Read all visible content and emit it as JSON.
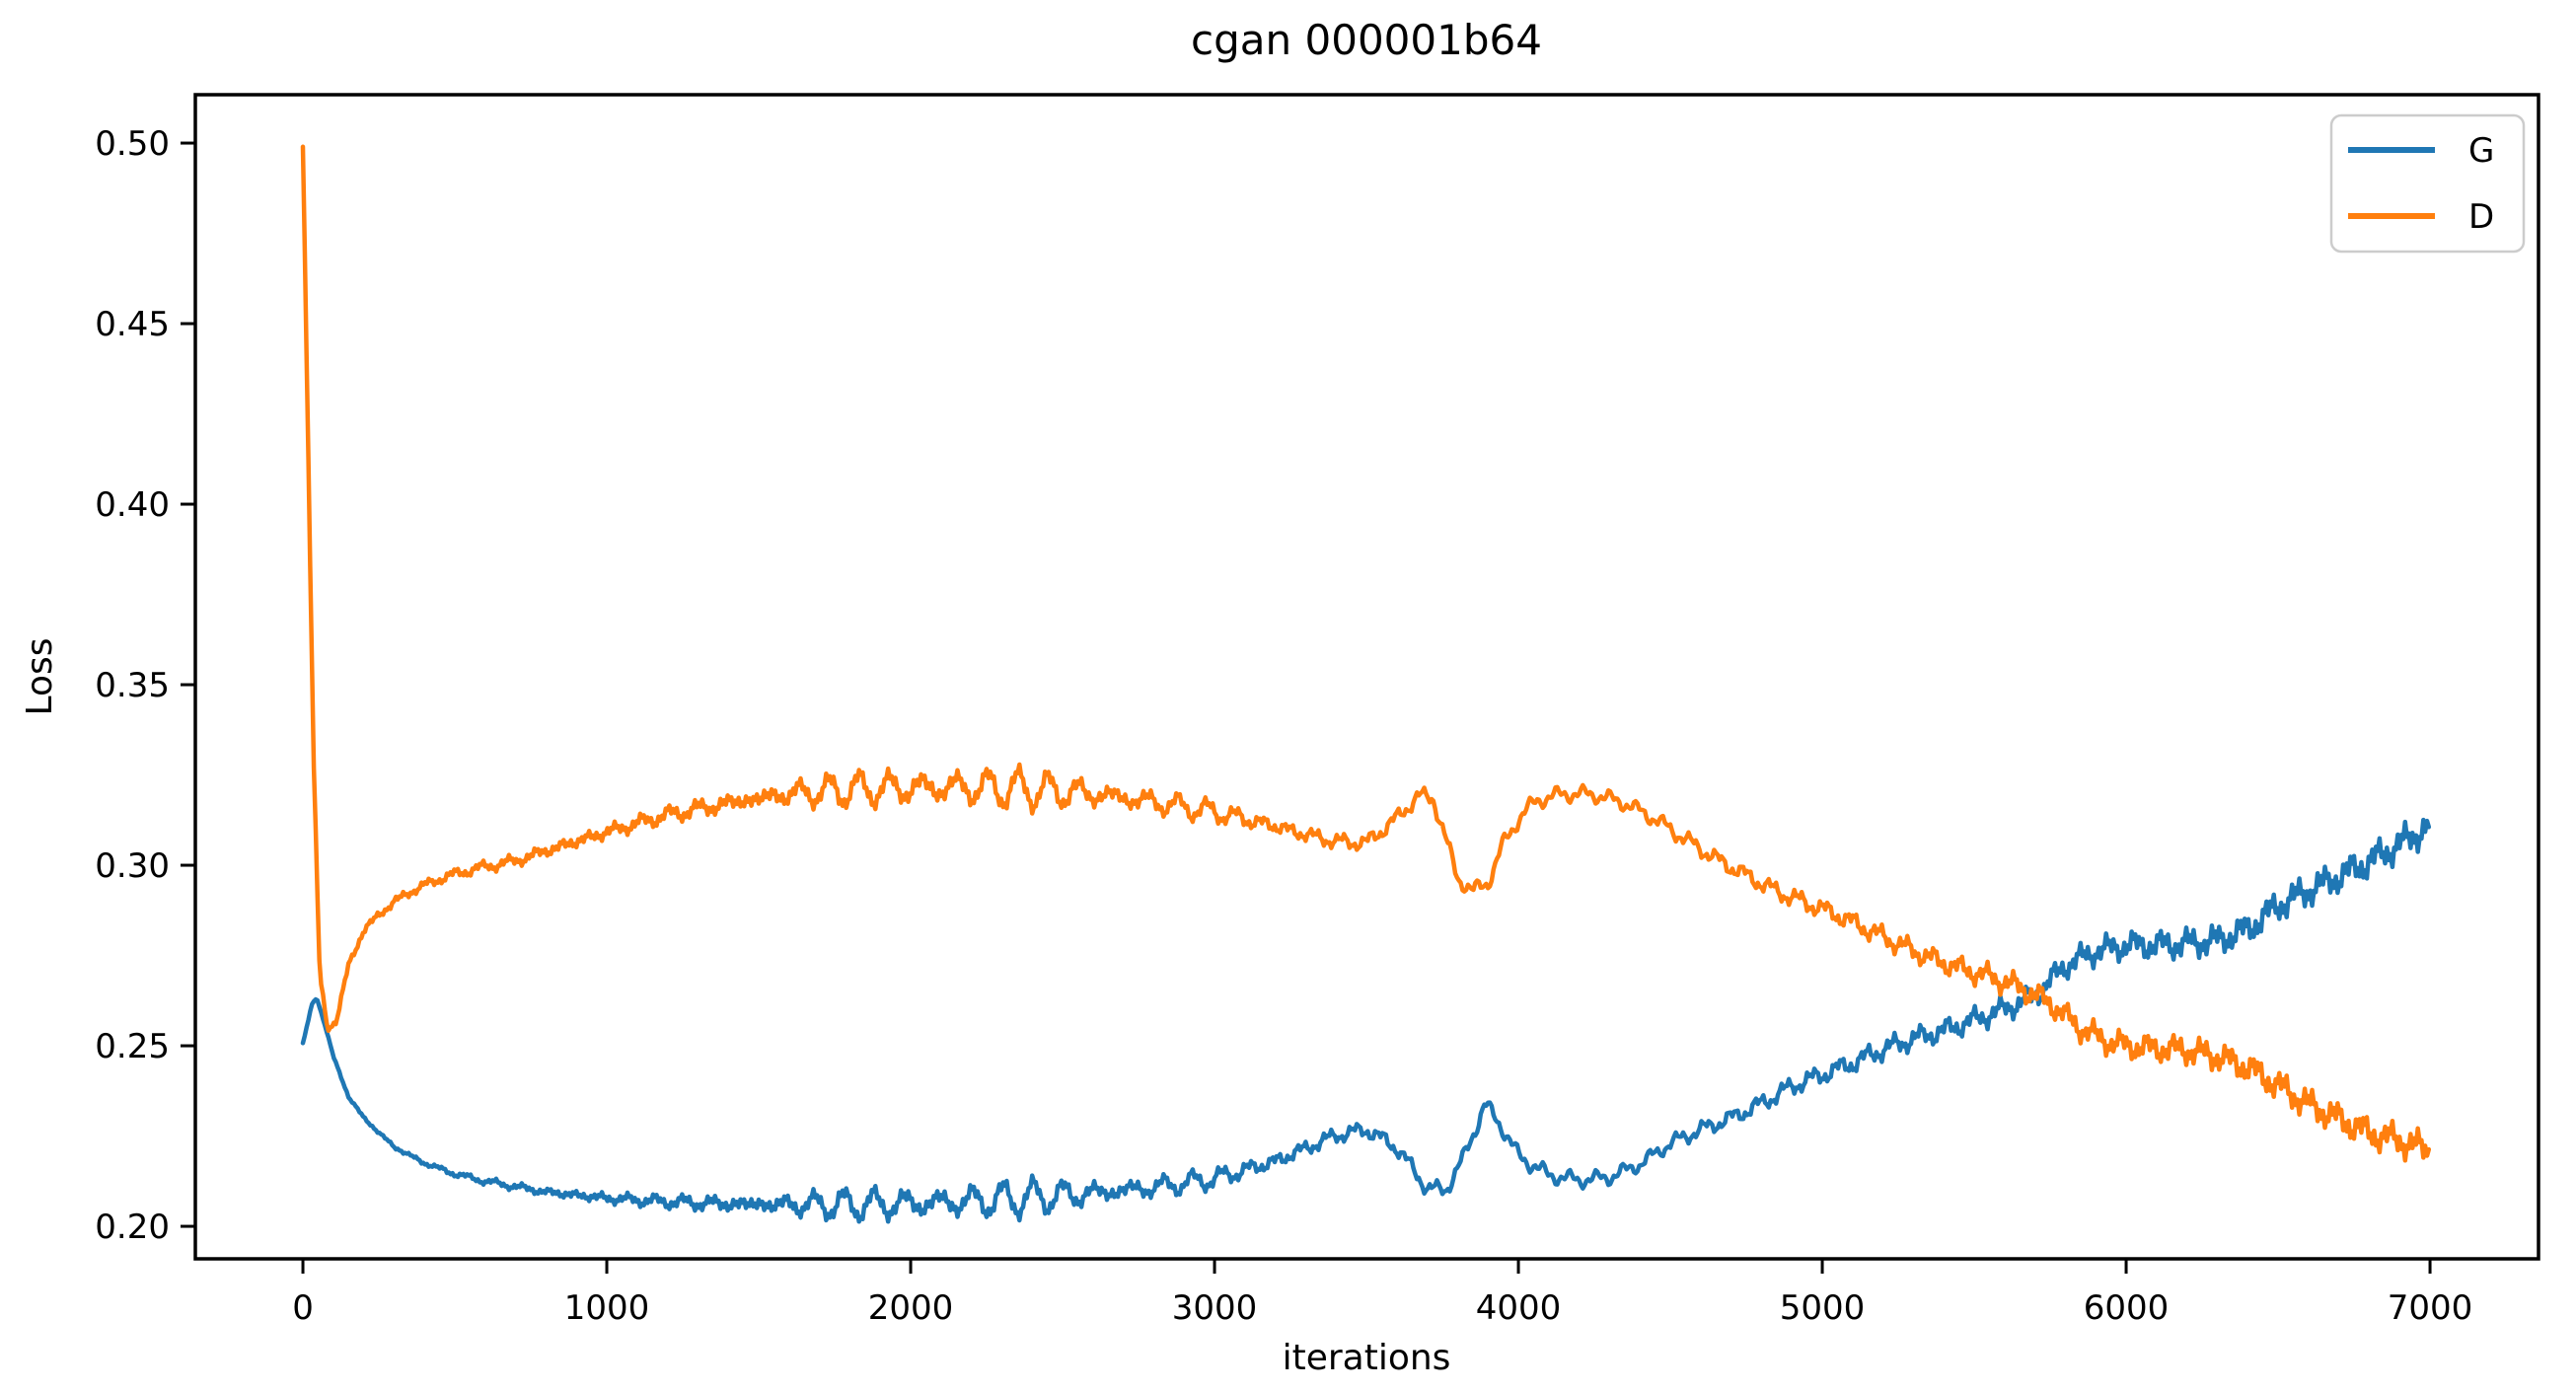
{
  "chart_data": {
    "type": "line",
    "title": "cgan 000001b64",
    "xlabel": "iterations",
    "ylabel": "Loss",
    "xlim": [
      -354,
      7357
    ],
    "ylim": [
      0.191,
      0.5134
    ],
    "xticks": [
      0,
      1000,
      2000,
      3000,
      4000,
      5000,
      6000,
      7000
    ],
    "xtick_labels": [
      "0",
      "1000",
      "2000",
      "3000",
      "4000",
      "5000",
      "6000",
      "7000"
    ],
    "yticks": [
      0.2,
      0.25,
      0.3,
      0.35,
      0.4,
      0.45,
      0.5
    ],
    "ytick_labels": [
      "0.20",
      "0.25",
      "0.30",
      "0.35",
      "0.40",
      "0.45",
      "0.50"
    ],
    "grid": false,
    "legend_position": "upper right",
    "osc_period": 104,
    "background_color": "#ffffff",
    "spine_color": "#000000",
    "legend_border_color": "#cccccc",
    "series": [
      {
        "name": "G",
        "color": "#1f77b4",
        "noise_sign": 1,
        "phase": 0.8,
        "keypoints": [
          [
            0,
            0.2505
          ],
          [
            30,
            0.2615
          ],
          [
            45,
            0.2635
          ],
          [
            70,
            0.2565
          ],
          [
            100,
            0.247
          ],
          [
            150,
            0.236
          ],
          [
            200,
            0.23
          ],
          [
            300,
            0.222
          ],
          [
            400,
            0.2175
          ],
          [
            500,
            0.2145
          ],
          [
            600,
            0.2125
          ],
          [
            800,
            0.2095
          ],
          [
            1000,
            0.2078
          ],
          [
            1200,
            0.2068
          ],
          [
            1400,
            0.2062
          ],
          [
            1600,
            0.206
          ],
          [
            1800,
            0.206
          ],
          [
            2000,
            0.2063
          ],
          [
            2200,
            0.207
          ],
          [
            2400,
            0.208
          ],
          [
            2600,
            0.2092
          ],
          [
            2800,
            0.2108
          ],
          [
            3000,
            0.2132
          ],
          [
            3200,
            0.218
          ],
          [
            3400,
            0.2252
          ],
          [
            3500,
            0.2268
          ],
          [
            3600,
            0.2218
          ],
          [
            3700,
            0.2105
          ],
          [
            3760,
            0.21
          ],
          [
            3820,
            0.219
          ],
          [
            3890,
            0.2338
          ],
          [
            3950,
            0.227
          ],
          [
            4000,
            0.2195
          ],
          [
            4100,
            0.2142
          ],
          [
            4200,
            0.2128
          ],
          [
            4300,
            0.2136
          ],
          [
            4400,
            0.2172
          ],
          [
            4500,
            0.223
          ],
          [
            4600,
            0.2268
          ],
          [
            4700,
            0.23
          ],
          [
            4800,
            0.234
          ],
          [
            4900,
            0.2388
          ],
          [
            5000,
            0.242
          ],
          [
            5100,
            0.2452
          ],
          [
            5200,
            0.249
          ],
          [
            5300,
            0.252
          ],
          [
            5400,
            0.2542
          ],
          [
            5500,
            0.2572
          ],
          [
            5600,
            0.2602
          ],
          [
            5700,
            0.2638
          ],
          [
            5800,
            0.2722
          ],
          [
            5900,
            0.2762
          ],
          [
            6000,
            0.2778
          ],
          [
            6150,
            0.278
          ],
          [
            6300,
            0.2792
          ],
          [
            6400,
            0.2822
          ],
          [
            6500,
            0.2888
          ],
          [
            6600,
            0.293
          ],
          [
            6700,
            0.2968
          ],
          [
            6800,
            0.301
          ],
          [
            6900,
            0.3058
          ],
          [
            7000,
            0.311
          ]
        ],
        "noise_amp": [
          [
            0,
            0.0003
          ],
          [
            300,
            0.0006
          ],
          [
            800,
            0.0012
          ],
          [
            1200,
            0.0018
          ],
          [
            1600,
            0.0024
          ],
          [
            2000,
            0.0028
          ],
          [
            2400,
            0.0028
          ],
          [
            2800,
            0.0026
          ],
          [
            3200,
            0.0026
          ],
          [
            3600,
            0.003
          ],
          [
            4000,
            0.0032
          ],
          [
            4400,
            0.0028
          ],
          [
            4800,
            0.0032
          ],
          [
            5200,
            0.0036
          ],
          [
            5600,
            0.0038
          ],
          [
            6000,
            0.0042
          ],
          [
            6500,
            0.0046
          ],
          [
            7000,
            0.0048
          ]
        ],
        "osc_amp": [
          [
            0,
            0
          ],
          [
            1200,
            0.0003
          ],
          [
            1500,
            0.0012
          ],
          [
            1800,
            0.0026
          ],
          [
            2000,
            0.0032
          ],
          [
            2200,
            0.0034
          ],
          [
            2400,
            0.0032
          ],
          [
            2600,
            0.0026
          ],
          [
            2800,
            0.0017
          ],
          [
            3000,
            0.0009
          ],
          [
            3200,
            0.0003
          ],
          [
            3400,
            0
          ],
          [
            7000,
            0
          ]
        ]
      },
      {
        "name": "D",
        "color": "#ff7f0e",
        "noise_sign": -1,
        "phase": 0.8,
        "keypoints": [
          [
            0,
            0.5
          ],
          [
            35,
            0.33
          ],
          [
            55,
            0.27
          ],
          [
            80,
            0.2548
          ],
          [
            110,
            0.257
          ],
          [
            150,
            0.272
          ],
          [
            200,
            0.2822
          ],
          [
            300,
            0.29
          ],
          [
            400,
            0.2946
          ],
          [
            500,
            0.2976
          ],
          [
            600,
            0.2996
          ],
          [
            700,
            0.3012
          ],
          [
            800,
            0.304
          ],
          [
            1000,
            0.3092
          ],
          [
            1200,
            0.314
          ],
          [
            1400,
            0.3172
          ],
          [
            1600,
            0.3198
          ],
          [
            1800,
            0.321
          ],
          [
            2000,
            0.3215
          ],
          [
            2200,
            0.3216
          ],
          [
            2400,
            0.321
          ],
          [
            2600,
            0.3198
          ],
          [
            2800,
            0.3175
          ],
          [
            3000,
            0.3148
          ],
          [
            3200,
            0.3108
          ],
          [
            3300,
            0.3085
          ],
          [
            3400,
            0.3066
          ],
          [
            3500,
            0.3062
          ],
          [
            3600,
            0.313
          ],
          [
            3670,
            0.3192
          ],
          [
            3720,
            0.3185
          ],
          [
            3800,
            0.2965
          ],
          [
            3850,
            0.2928
          ],
          [
            3900,
            0.2952
          ],
          [
            3950,
            0.3058
          ],
          [
            4000,
            0.3128
          ],
          [
            4060,
            0.318
          ],
          [
            4150,
            0.3198
          ],
          [
            4250,
            0.3196
          ],
          [
            4350,
            0.3172
          ],
          [
            4450,
            0.3128
          ],
          [
            4550,
            0.3072
          ],
          [
            4650,
            0.3018
          ],
          [
            4750,
            0.2972
          ],
          [
            4850,
            0.2928
          ],
          [
            4950,
            0.2895
          ],
          [
            5050,
            0.2862
          ],
          [
            5150,
            0.2822
          ],
          [
            5250,
            0.2782
          ],
          [
            5350,
            0.2745
          ],
          [
            5450,
            0.2715
          ],
          [
            5550,
            0.2692
          ],
          [
            5650,
            0.2662
          ],
          [
            5750,
            0.2618
          ],
          [
            5850,
            0.2548
          ],
          [
            5950,
            0.2508
          ],
          [
            6050,
            0.2495
          ],
          [
            6200,
            0.2488
          ],
          [
            6300,
            0.247
          ],
          [
            6400,
            0.244
          ],
          [
            6500,
            0.239
          ],
          [
            6600,
            0.2338
          ],
          [
            6700,
            0.2298
          ],
          [
            6800,
            0.2258
          ],
          [
            6900,
            0.2238
          ],
          [
            7000,
            0.221
          ]
        ],
        "noise_amp": [
          [
            0,
            0.0012
          ],
          [
            300,
            0.0014
          ],
          [
            800,
            0.0018
          ],
          [
            1200,
            0.0022
          ],
          [
            1600,
            0.0026
          ],
          [
            2000,
            0.003
          ],
          [
            2400,
            0.003
          ],
          [
            2800,
            0.0028
          ],
          [
            3200,
            0.0026
          ],
          [
            3600,
            0.003
          ],
          [
            4000,
            0.0032
          ],
          [
            4400,
            0.003
          ],
          [
            4800,
            0.0032
          ],
          [
            5200,
            0.0035
          ],
          [
            5600,
            0.0038
          ],
          [
            6000,
            0.004
          ],
          [
            6500,
            0.0044
          ],
          [
            7000,
            0.0046
          ]
        ],
        "osc_amp": [
          [
            0,
            0
          ],
          [
            1200,
            0.0004
          ],
          [
            1500,
            0.0015
          ],
          [
            1800,
            0.003
          ],
          [
            2000,
            0.0037
          ],
          [
            2200,
            0.0039
          ],
          [
            2400,
            0.0036
          ],
          [
            2600,
            0.003
          ],
          [
            2800,
            0.002
          ],
          [
            3000,
            0.0011
          ],
          [
            3200,
            0.0004
          ],
          [
            3400,
            0
          ],
          [
            7000,
            0
          ]
        ]
      }
    ]
  }
}
